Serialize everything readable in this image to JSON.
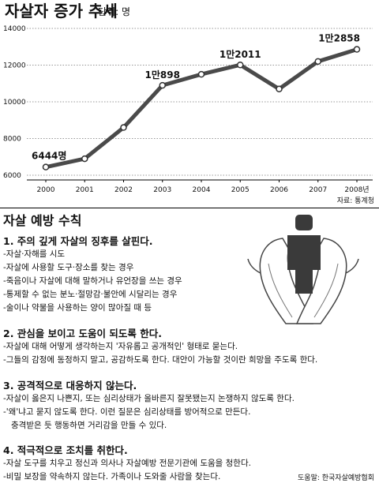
{
  "chart_data": {
    "type": "line",
    "title": "자살자 증가 추세",
    "unit": "단위: 명",
    "x": [
      "2000",
      "2001",
      "2002",
      "2003",
      "2004",
      "2005",
      "2006",
      "2007",
      "2008년"
    ],
    "series": [
      {
        "values": [
          6444,
          6900,
          8600,
          10898,
          11500,
          12011,
          10700,
          12200,
          12858
        ]
      }
    ],
    "ylim": [
      6000,
      14000
    ],
    "yticks": [
      "14000",
      "12000",
      "10000",
      "8000",
      "6000"
    ],
    "data_labels": [
      {
        "index": 0,
        "text": "6444명"
      },
      {
        "index": 3,
        "text": "1만898"
      },
      {
        "index": 5,
        "text": "1만2011"
      },
      {
        "index": 8,
        "text": "1만2858"
      }
    ],
    "grid": "horizontal dotted",
    "source": "자료: 통계청"
  },
  "guide": {
    "title": "자살 예방 수칙",
    "sections": [
      {
        "heading": "1. 주의 깊게 자살의 징후를 살핀다.",
        "items": [
          "-자살·자해를 시도",
          "-자살에 사용할 도구·장소를 찾는 경우",
          "-죽음이나 자살에 대해 말하거나 유언장을 쓰는 경우",
          "-통제할 수 없는 분노·절망감·불안에 시달리는 경우",
          "-술이나 약물을 사용하는 양이 많아질 때 등"
        ]
      },
      {
        "heading": "2. 관심을 보이고 도움이 되도록 한다.",
        "items": [
          "-자살에 대해 어떻게 생각하는지 '자유롭고 공개적인' 형태로 묻는다.",
          "-그들의 감정에 동정하지 말고, 공감하도록 한다. 대안이 가능할 것이란 희망을 주도록 한다."
        ]
      },
      {
        "heading": "3. 공격적으로 대응하지 않는다.",
        "items": [
          "-자살이 옳은지 나쁜지, 또는 심리상태가 올바른지 잘못됐는지 논쟁하지 않도록 한다.",
          "-'왜'냐고 묻지 않도록 한다. 이런 질문은 심리상태를 방어적으로 만든다.",
          "충격받은 듯 행동하면 거리감을 만들 수 있다."
        ]
      },
      {
        "heading": "4. 적극적으로 조치를 취한다.",
        "items": [
          "-자살 도구를 치우고 정신과 의사나 자살예방 전문기관에 도움을 청한다.",
          "-비밀 보장을 약속하지 않는다. 가족이나 도와줄 사람을 찾는다."
        ]
      }
    ],
    "credit": "도움말: 한국자살예방협회"
  },
  "illustration": {
    "name": "supporting-hands-icon"
  }
}
